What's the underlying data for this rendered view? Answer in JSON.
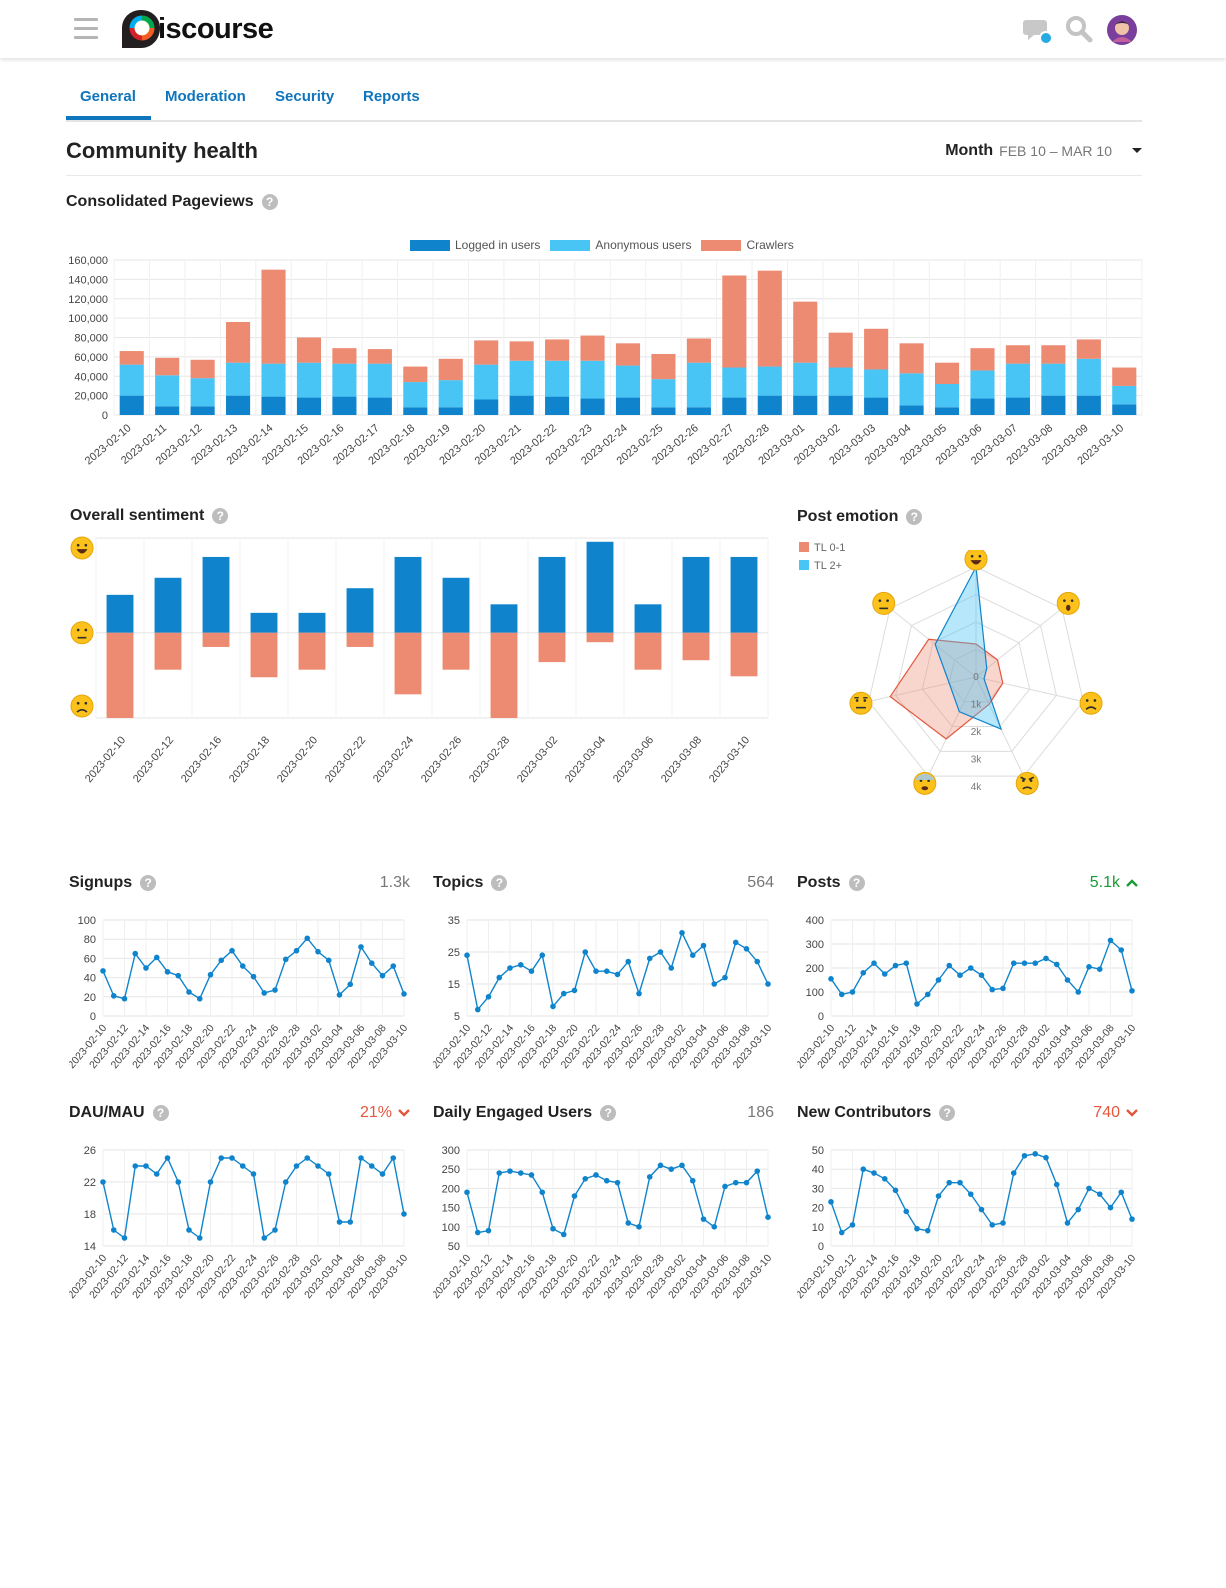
{
  "app": {
    "logo_text": "iscourse"
  },
  "colors": {
    "logged": "#0f84cc",
    "anon": "#48c4f5",
    "crawlers": "#ec8a72",
    "blue": "#0f84cc",
    "red": "#e4573d",
    "green": "#1a9a36",
    "link": "#0f75bc"
  },
  "tabs": [
    "General",
    "Moderation",
    "Security",
    "Reports"
  ],
  "header": {
    "title": "Community health",
    "period_label": "Month",
    "period_range": "FEB 10 – MAR 10"
  },
  "pageviews": {
    "title": "Consolidated Pageviews",
    "chart_data": {
      "type": "bar",
      "stacked": true,
      "categories": [
        "2023-02-10",
        "2023-02-11",
        "2023-02-12",
        "2023-02-13",
        "2023-02-14",
        "2023-02-15",
        "2023-02-16",
        "2023-02-17",
        "2023-02-18",
        "2023-02-19",
        "2023-02-20",
        "2023-02-21",
        "2023-02-22",
        "2023-02-23",
        "2023-02-24",
        "2023-02-25",
        "2023-02-26",
        "2023-02-27",
        "2023-02-28",
        "2023-03-01",
        "2023-03-02",
        "2023-03-03",
        "2023-03-04",
        "2023-03-05",
        "2023-03-06",
        "2023-03-07",
        "2023-03-08",
        "2023-03-09",
        "2023-03-10"
      ],
      "series": [
        {
          "name": "Logged in users",
          "values": [
            20000,
            9000,
            9000,
            20000,
            19000,
            18000,
            19000,
            18000,
            8000,
            8000,
            16000,
            20000,
            19000,
            17000,
            18000,
            8000,
            8000,
            18000,
            20000,
            20000,
            20000,
            18000,
            10000,
            8000,
            17000,
            18000,
            20000,
            20000,
            11000
          ]
        },
        {
          "name": "Anonymous users",
          "values": [
            32000,
            32000,
            29000,
            34000,
            34000,
            36000,
            34000,
            35000,
            26000,
            28000,
            36000,
            36000,
            37000,
            39000,
            33000,
            29000,
            46000,
            31000,
            30000,
            34000,
            29000,
            29000,
            33000,
            24000,
            29000,
            35000,
            33000,
            38000,
            19000
          ]
        },
        {
          "name": "Crawlers",
          "values": [
            14000,
            18000,
            19000,
            42000,
            97000,
            26000,
            16000,
            15000,
            16000,
            22000,
            25000,
            20000,
            22000,
            26000,
            23000,
            26000,
            25000,
            95000,
            99000,
            63000,
            36000,
            42000,
            31000,
            22000,
            23000,
            19000,
            19000,
            20000,
            19000
          ]
        }
      ],
      "yticks": [
        "160,000",
        "140,000",
        "120,000",
        "100,000",
        "80,000",
        "60,000",
        "40,000",
        "20,000",
        "0"
      ],
      "ylim": [
        0,
        160000
      ]
    }
  },
  "sentiment": {
    "title": "Overall sentiment",
    "chart_data": {
      "type": "bar",
      "categories": [
        "2023-02-10",
        "2023-02-12",
        "2023-02-16",
        "2023-02-18",
        "2023-02-20",
        "2023-02-22",
        "2023-02-24",
        "2023-02-26",
        "2023-02-28",
        "2023-03-02",
        "2023-03-04",
        "2023-03-06",
        "2023-03-08",
        "2023-03-10"
      ],
      "positive": [
        40,
        58,
        80,
        21,
        21,
        47,
        80,
        58,
        30,
        80,
        96,
        30,
        80,
        80
      ],
      "negative": [
        -90,
        -39,
        -15,
        -47,
        -39,
        -15,
        -65,
        -39,
        -90,
        -31,
        -10,
        -39,
        -29,
        -46
      ],
      "ylim": [
        -90,
        100
      ]
    }
  },
  "emotion": {
    "title": "Post emotion",
    "chart_data": {
      "type": "radar",
      "axes": [
        "happy",
        "surprised",
        "sad",
        "angry",
        "fearful",
        "disgusted",
        "neutral"
      ],
      "ticks": [
        "0",
        "1k",
        "2k",
        "3k",
        "4k"
      ],
      "max": 4000,
      "series": [
        {
          "name": "TL 0-1",
          "values": [
            1200,
            1000,
            1000,
            1100,
            2500,
            3200,
            2200
          ]
        },
        {
          "name": "TL 2+",
          "values": [
            4000,
            500,
            300,
            2100,
            1400,
            1000,
            1900
          ]
        }
      ]
    }
  },
  "metrics": [
    {
      "title": "Signups",
      "value": "1.3k",
      "trend": "none",
      "chart_data": {
        "type": "line",
        "yticks": [
          "100",
          "80",
          "60",
          "40",
          "20",
          "0"
        ],
        "ylim": [
          0,
          100
        ],
        "values": [
          47,
          21,
          18,
          65,
          50,
          61,
          46,
          42,
          25,
          18,
          43,
          58,
          68,
          52,
          41,
          24,
          27,
          59,
          68,
          81,
          67,
          58,
          22,
          33,
          72,
          55,
          42,
          52,
          23
        ]
      }
    },
    {
      "title": "Topics",
      "value": "564",
      "trend": "none",
      "chart_data": {
        "type": "line",
        "yticks": [
          "35",
          "25",
          "15",
          "5"
        ],
        "ylim": [
          5,
          35
        ],
        "values": [
          24,
          7,
          11,
          17,
          20,
          21,
          19,
          24,
          8,
          12,
          13,
          25,
          19,
          19,
          18,
          22,
          12,
          23,
          25,
          20,
          31,
          24,
          27,
          15,
          17,
          28,
          26,
          22,
          15
        ]
      }
    },
    {
      "title": "Posts",
      "value": "5.1k",
      "trend": "up",
      "chart_data": {
        "type": "line",
        "yticks": [
          "400",
          "300",
          "200",
          "100",
          "0"
        ],
        "ylim": [
          0,
          400
        ],
        "values": [
          155,
          90,
          100,
          180,
          220,
          175,
          210,
          220,
          50,
          90,
          150,
          210,
          170,
          200,
          170,
          110,
          115,
          220,
          220,
          220,
          240,
          215,
          150,
          100,
          205,
          195,
          315,
          275,
          105
        ]
      }
    },
    {
      "title": "DAU/MAU",
      "value": "21%",
      "trend": "down",
      "chart_data": {
        "type": "line",
        "yticks": [
          "26",
          "22",
          "18",
          "14"
        ],
        "ylim": [
          14,
          26
        ],
        "values": [
          22,
          16,
          15,
          24,
          24,
          23,
          25,
          22,
          16,
          15,
          22,
          25,
          25,
          24,
          23,
          15,
          16,
          22,
          24,
          25,
          24,
          23,
          17,
          17,
          25,
          24,
          23,
          25,
          18
        ]
      }
    },
    {
      "title": "Daily Engaged Users",
      "value": "186",
      "trend": "none",
      "chart_data": {
        "type": "line",
        "yticks": [
          "300",
          "250",
          "200",
          "150",
          "100",
          "50"
        ],
        "ylim": [
          50,
          300
        ],
        "values": [
          190,
          85,
          90,
          240,
          245,
          240,
          235,
          190,
          95,
          80,
          180,
          225,
          235,
          220,
          215,
          110,
          100,
          230,
          260,
          250,
          260,
          220,
          120,
          100,
          205,
          215,
          215,
          245,
          125
        ]
      }
    },
    {
      "title": "New Contributors",
      "value": "740",
      "trend": "down",
      "chart_data": {
        "type": "line",
        "yticks": [
          "50",
          "40",
          "30",
          "20",
          "10",
          "0"
        ],
        "ylim": [
          0,
          50
        ],
        "values": [
          23,
          7,
          11,
          40,
          38,
          35,
          29,
          18,
          9,
          8,
          26,
          33,
          33,
          27,
          19,
          11,
          12,
          38,
          47,
          48,
          46,
          32,
          12,
          19,
          30,
          27,
          20,
          28,
          14
        ]
      }
    }
  ],
  "line_xlabels": [
    "2023-02-10",
    "2023-02-12",
    "2023-02-14",
    "2023-02-16",
    "2023-02-18",
    "2023-02-20",
    "2023-02-22",
    "2023-02-24",
    "2023-02-26",
    "2023-02-28",
    "2023-03-02",
    "2023-03-04",
    "2023-03-06",
    "2023-03-08",
    "2023-03-10"
  ]
}
